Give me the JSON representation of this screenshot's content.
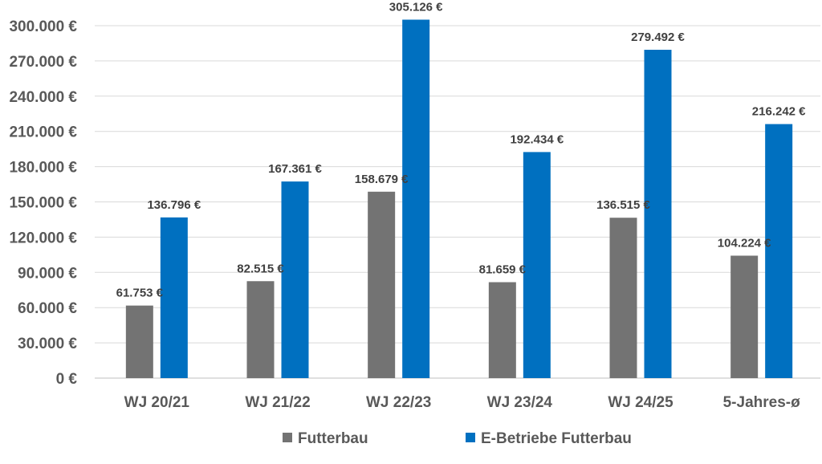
{
  "chart_data": {
    "type": "bar",
    "categories": [
      "WJ 20/21",
      "WJ 21/22",
      "WJ 22/23",
      "WJ 23/24",
      "WJ 24/25",
      "5-Jahres-ø"
    ],
    "series": [
      {
        "name": "Futterbau",
        "color": "#737373",
        "values": [
          61753,
          82515,
          158679,
          81659,
          136515,
          104224
        ],
        "labels": [
          "61.753 €",
          "82.515 €",
          "158.679 €",
          "81.659 €",
          "136.515 €",
          "104.224 €"
        ]
      },
      {
        "name": "E-Betriebe Futterbau",
        "color": "#0070C0",
        "values": [
          136796,
          167361,
          305126,
          192434,
          279492,
          216242
        ],
        "labels": [
          "136.796 €",
          "167.361 €",
          "305.126 €",
          "192.434 €",
          "279.492 €",
          "216.242 €"
        ]
      }
    ],
    "ylim": [
      0,
      300000
    ],
    "yticks": [
      0,
      30000,
      60000,
      90000,
      120000,
      150000,
      180000,
      210000,
      240000,
      270000,
      300000
    ],
    "ytick_labels": [
      "0 €",
      "30.000 €",
      "60.000 €",
      "90.000 €",
      "120.000 €",
      "150.000 €",
      "180.000 €",
      "210.000 €",
      "240.000 €",
      "270.000 €",
      "300.000 €"
    ],
    "grid": true,
    "legend_position": "bottom",
    "title": "",
    "xlabel": "",
    "ylabel": ""
  }
}
